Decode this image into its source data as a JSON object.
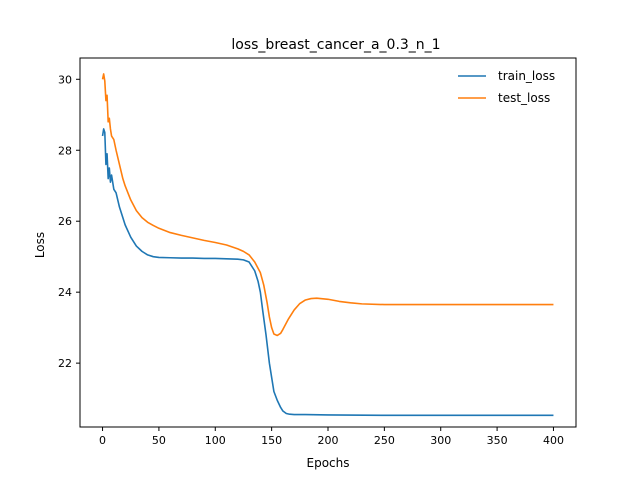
{
  "chart_data": {
    "type": "line",
    "title": "loss_breast_cancer_a_0.3_n_1",
    "xlabel": "Epochs",
    "ylabel": "Loss",
    "xlim": [
      -20,
      420
    ],
    "ylim": [
      20.2,
      30.6
    ],
    "xticks": [
      0,
      50,
      100,
      150,
      200,
      250,
      300,
      350,
      400
    ],
    "yticks": [
      22,
      24,
      26,
      28,
      30
    ],
    "grid": false,
    "legend": "top-right",
    "series": [
      {
        "name": "train_loss",
        "color": "#1f77b4",
        "x": [
          0,
          1,
          2,
          3,
          4,
          5,
          6,
          7,
          8,
          10,
          12,
          15,
          18,
          20,
          25,
          30,
          35,
          40,
          45,
          50,
          60,
          70,
          80,
          90,
          100,
          110,
          120,
          125,
          130,
          135,
          138,
          140,
          142,
          145,
          148,
          150,
          152,
          155,
          158,
          160,
          163,
          166,
          170,
          180,
          200,
          250,
          300,
          350,
          400
        ],
        "y": [
          28.4,
          28.6,
          28.5,
          27.6,
          27.9,
          27.2,
          27.5,
          27.1,
          27.3,
          26.9,
          26.8,
          26.4,
          26.1,
          25.9,
          25.55,
          25.3,
          25.15,
          25.05,
          25.0,
          24.98,
          24.97,
          24.96,
          24.96,
          24.95,
          24.95,
          24.94,
          24.93,
          24.91,
          24.85,
          24.6,
          24.3,
          24.0,
          23.5,
          22.8,
          22.0,
          21.6,
          21.2,
          20.95,
          20.75,
          20.65,
          20.58,
          20.56,
          20.55,
          20.55,
          20.54,
          20.53,
          20.53,
          20.53,
          20.53
        ]
      },
      {
        "name": "test_loss",
        "color": "#ff7f0e",
        "x": [
          0,
          1,
          2,
          3,
          4,
          5,
          6,
          7,
          8,
          10,
          12,
          15,
          18,
          20,
          25,
          30,
          35,
          40,
          45,
          50,
          60,
          70,
          80,
          90,
          100,
          110,
          120,
          125,
          130,
          135,
          140,
          143,
          146,
          148,
          150,
          152,
          155,
          158,
          160,
          165,
          170,
          175,
          180,
          185,
          190,
          200,
          210,
          220,
          230,
          250,
          300,
          350,
          400
        ],
        "y": [
          30.0,
          30.15,
          29.95,
          29.4,
          29.55,
          28.8,
          28.9,
          28.6,
          28.4,
          28.3,
          28.0,
          27.6,
          27.2,
          27.0,
          26.6,
          26.3,
          26.1,
          25.97,
          25.88,
          25.8,
          25.68,
          25.6,
          25.53,
          25.46,
          25.4,
          25.33,
          25.22,
          25.15,
          25.05,
          24.85,
          24.55,
          24.2,
          23.7,
          23.3,
          23.0,
          22.82,
          22.78,
          22.84,
          22.95,
          23.25,
          23.5,
          23.68,
          23.78,
          23.82,
          23.83,
          23.8,
          23.74,
          23.7,
          23.67,
          23.65,
          23.65,
          23.65,
          23.65
        ]
      }
    ]
  }
}
